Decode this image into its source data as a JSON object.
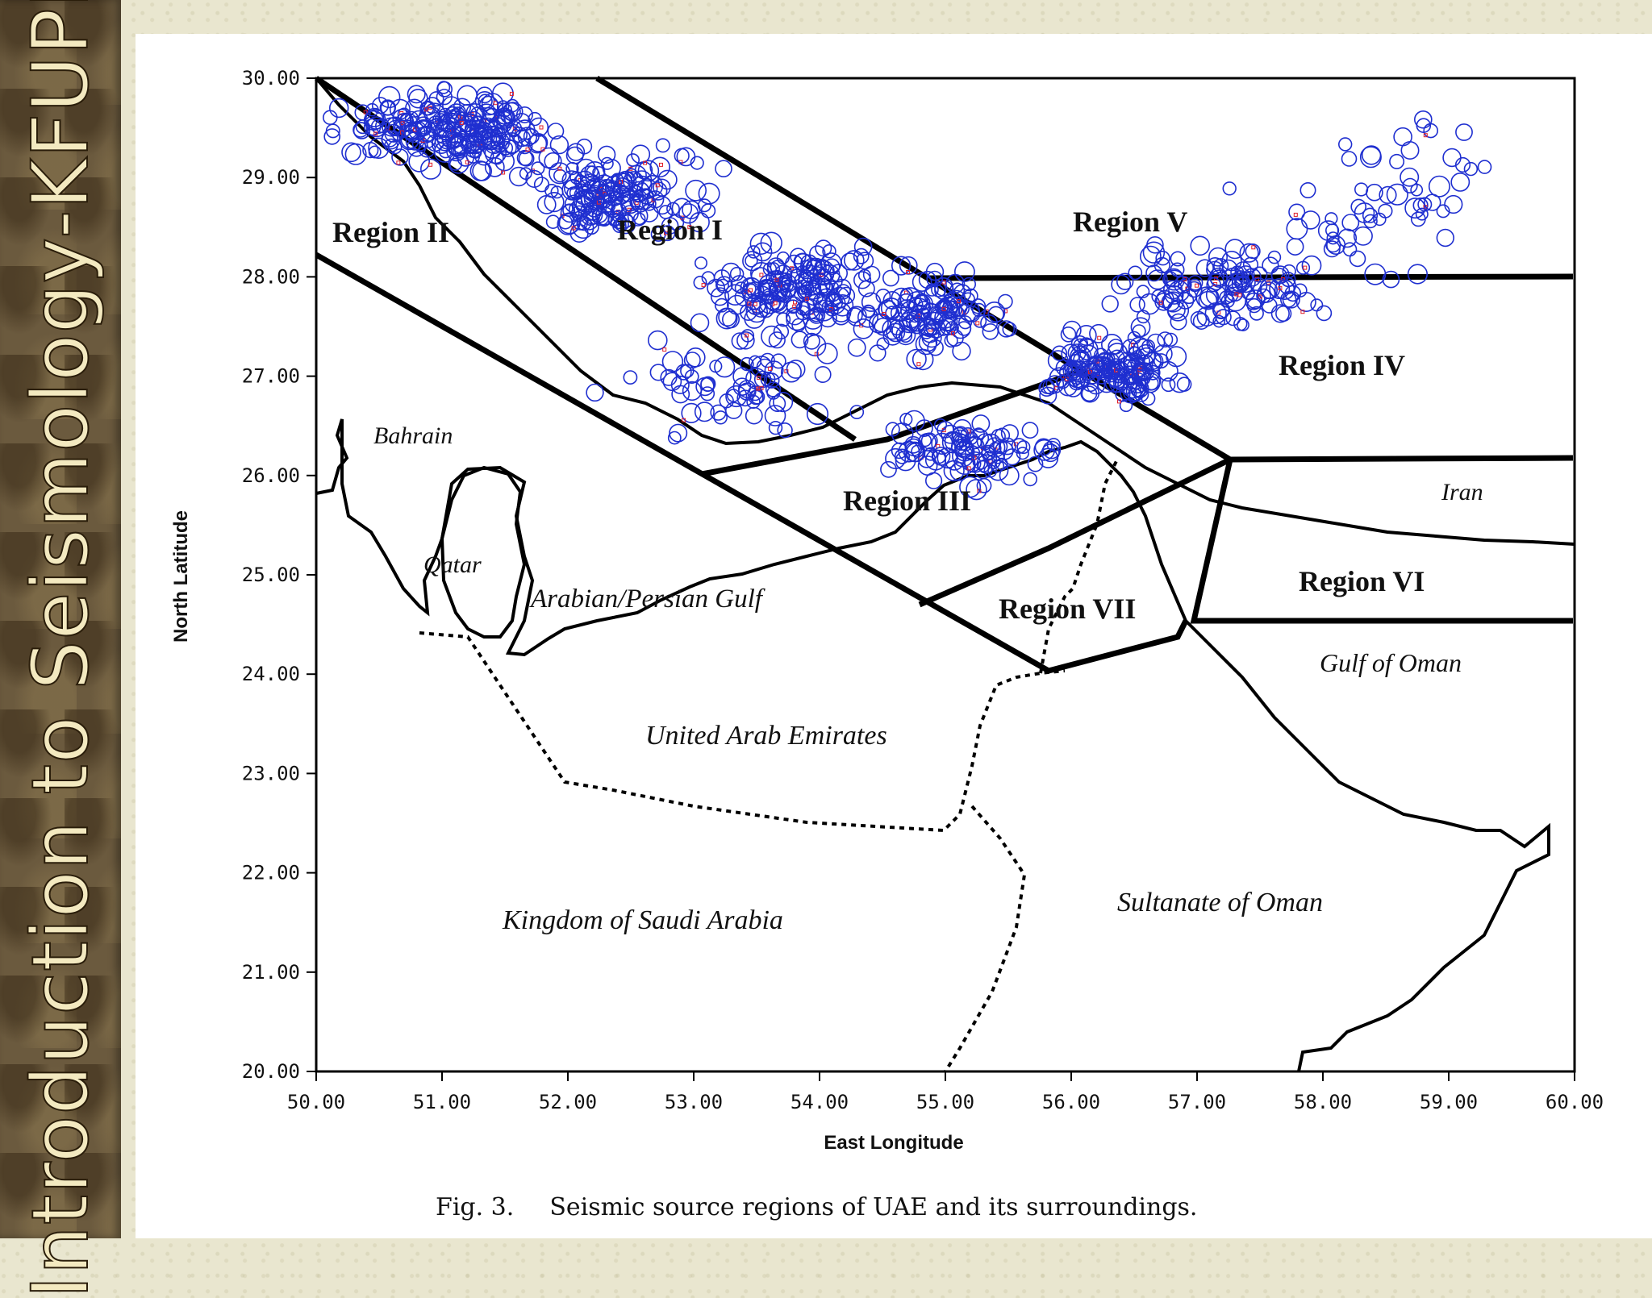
{
  "sidebar": {
    "title": "Introduction to Seismology-KFUPM"
  },
  "map": {
    "x_axis_label": "East Longitude",
    "y_axis_label": "North Latitude",
    "lon_range": [
      50,
      60
    ],
    "lat_range": [
      20,
      30
    ],
    "x_tick_labels": [
      "50.00",
      "51.00",
      "52.00",
      "53.00",
      "54.00",
      "55.00",
      "56.00",
      "57.00",
      "58.00",
      "59.00",
      "60.00"
    ],
    "y_tick_labels": [
      "30.00",
      "29.00",
      "28.00",
      "27.00",
      "26.00",
      "25.00",
      "24.00",
      "23.00",
      "22.00",
      "21.00",
      "20.00"
    ],
    "region_labels": [
      "Region I",
      "Region II",
      "Region III",
      "Region IV",
      "Region V",
      "Region VI",
      "Region VII"
    ],
    "place_labels": [
      "Bahrain",
      "Qatar",
      "Arabian/Persian Gulf",
      "Iran",
      "Gulf of Oman",
      "United Arab Emirates",
      "Kingdom of Saudi Arabia",
      "Sultanate of Oman"
    ],
    "colors": {
      "events_major": "#1f2fd0",
      "events_minor": "#e0202a",
      "boundaries": "#000000"
    }
  },
  "caption": {
    "fig_label": "Fig. 3.",
    "text": "Seismic source regions of UAE and its surroundings."
  }
}
